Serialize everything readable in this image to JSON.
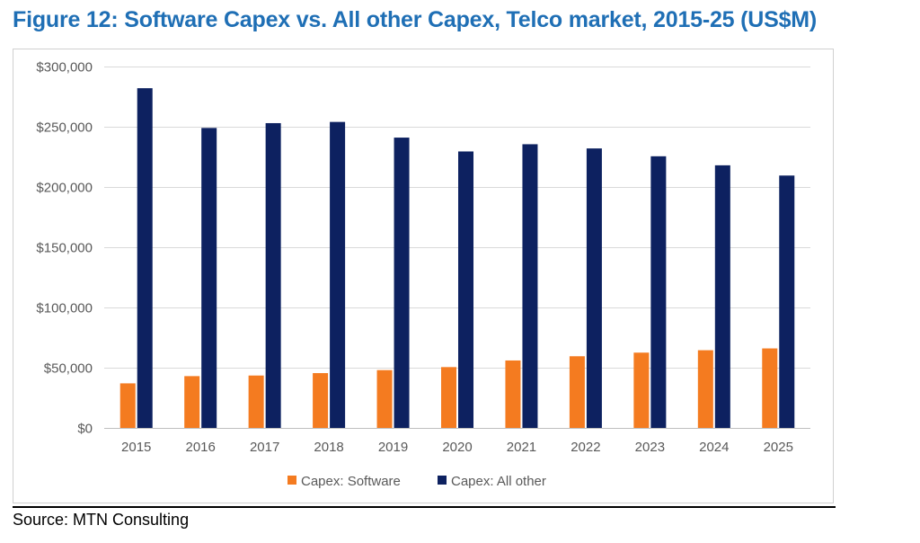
{
  "title": "Figure 12: Software Capex vs. All other Capex, Telco market, 2015-25 (US$M)",
  "source": "Source: MTN Consulting",
  "chart_data": {
    "type": "bar",
    "title": "Figure 12: Software Capex vs. All other Capex, Telco market, 2015-25 (US$M)",
    "xlabel": "",
    "ylabel": "",
    "ylim": [
      0,
      300000
    ],
    "yticks": [
      0,
      50000,
      100000,
      150000,
      200000,
      250000,
      300000
    ],
    "ytick_labels": [
      "$0",
      "$50,000",
      "$100,000",
      "$150,000",
      "$200,000",
      "$250,000",
      "$300,000"
    ],
    "grid": true,
    "legend_position": "bottom",
    "categories": [
      "2015",
      "2016",
      "2017",
      "2018",
      "2019",
      "2020",
      "2021",
      "2022",
      "2023",
      "2024",
      "2025"
    ],
    "series": [
      {
        "name": "Capex: Software",
        "color": "#F47B20",
        "values": [
          37000,
          43000,
          43500,
          45500,
          48000,
          50500,
          56000,
          59500,
          62500,
          64500,
          66000
        ]
      },
      {
        "name": "Capex: All other",
        "color": "#0D2160",
        "values": [
          282000,
          249000,
          253000,
          254000,
          241000,
          229500,
          235500,
          232000,
          225500,
          218000,
          209500
        ]
      }
    ]
  }
}
